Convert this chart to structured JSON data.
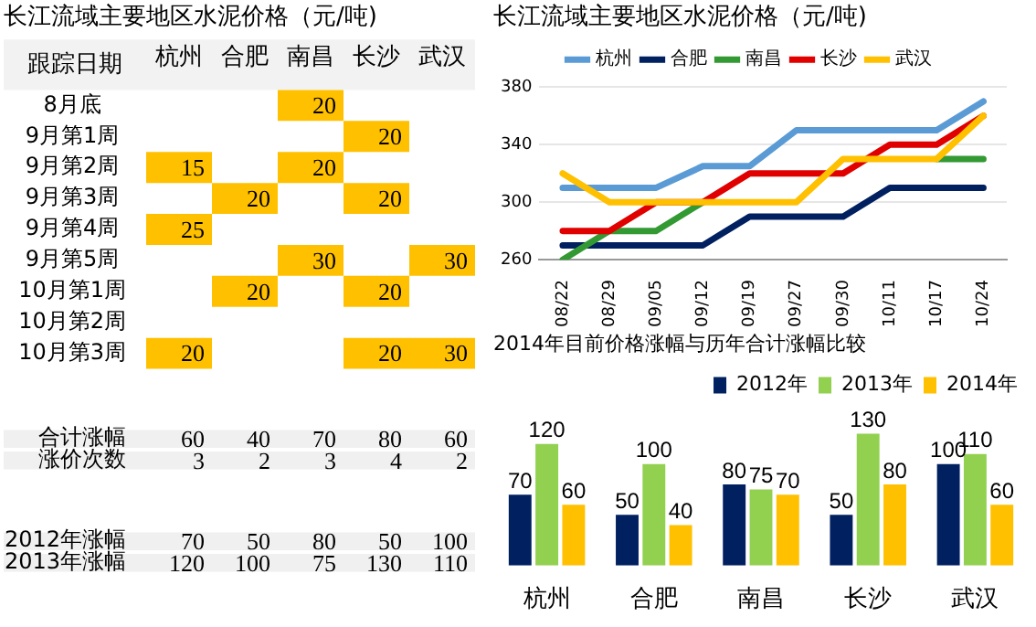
{
  "chart_data": [
    {
      "type": "heatmap",
      "title": "长江流域主要地区水泥价格（元/吨)",
      "ylabel": "跟踪日期",
      "color": "#ffc000",
      "data_labels": true,
      "categories": [
        "杭州",
        "合肥",
        "南昌",
        "长沙",
        "武汉"
      ],
      "y_categories": [
        "8月底",
        "9月第1周",
        "9月第2周",
        "9月第3周",
        "9月第4周",
        "9月第5周",
        "10月第1周",
        "10月第2周",
        "10月第3周"
      ],
      "cells": [
        [
          null,
          null,
          20,
          null,
          null
        ],
        [
          null,
          null,
          null,
          20,
          null
        ],
        [
          15,
          null,
          20,
          null,
          null
        ],
        [
          null,
          20,
          null,
          20,
          null
        ],
        [
          25,
          null,
          null,
          null,
          null
        ],
        [
          null,
          null,
          30,
          null,
          30
        ],
        [
          null,
          20,
          null,
          20,
          null
        ],
        [
          null,
          null,
          null,
          null,
          null
        ],
        [
          20,
          null,
          null,
          20,
          30
        ]
      ]
    },
    {
      "type": "heatmap",
      "tick_labels": "y",
      "data_labels": true,
      "categories": [
        null,
        null,
        null,
        null,
        null
      ],
      "y_categories": [
        "合计涨幅",
        "涨价次数"
      ],
      "cells": [
        [
          60,
          40,
          70,
          80,
          60
        ],
        [
          3,
          2,
          3,
          4,
          2
        ]
      ]
    },
    {
      "type": "heatmap",
      "tick_labels": "y",
      "data_labels": true,
      "categories": [
        null,
        null,
        null,
        null,
        null
      ],
      "y_categories": [
        "2012年涨幅",
        "2013年涨幅"
      ],
      "cells": [
        [
          70,
          50,
          80,
          50,
          100
        ],
        [
          120,
          100,
          75,
          130,
          110
        ]
      ]
    },
    {
      "type": "line",
      "title": "长江流域主要地区水泥价格（元/吨)",
      "categories": [
        "08/22",
        "08/29",
        "09/05",
        "09/12",
        "09/19",
        "09/27",
        "09/30",
        "10/11",
        "10/17",
        "10/24"
      ],
      "ylim": [
        260,
        380
      ],
      "yticks": [
        260,
        300,
        340,
        380
      ],
      "grid": "y",
      "legend": "top",
      "marker": "none",
      "line_style": "solid",
      "series": [
        {
          "name": "杭州",
          "color": "#5b9bd5",
          "values": [
            310,
            310,
            310,
            325,
            325,
            350,
            350,
            350,
            350,
            370
          ]
        },
        {
          "name": "合肥",
          "color": "#002060",
          "values": [
            270,
            270,
            270,
            270,
            290,
            290,
            290,
            310,
            310,
            310
          ]
        },
        {
          "name": "南昌",
          "color": "#339933",
          "values": [
            260,
            280,
            280,
            300,
            null,
            null,
            null,
            null,
            330,
            330
          ]
        },
        {
          "name": "长沙",
          "color": "#e00000",
          "values": [
            280,
            280,
            300,
            300,
            320,
            320,
            320,
            340,
            340,
            360
          ]
        },
        {
          "name": "武汉",
          "color": "#ffc000",
          "values": [
            320,
            300,
            300,
            300,
            300,
            300,
            330,
            330,
            330,
            360
          ]
        }
      ]
    },
    {
      "type": "bar",
      "title": "2014年目前价格涨幅与历年合计涨幅比较",
      "categories": [
        "杭州",
        "合肥",
        "南昌",
        "长沙",
        "武汉"
      ],
      "legend": "top right",
      "data_labels": true,
      "series": [
        {
          "name": "2012年",
          "color": "#002060",
          "values": [
            70,
            50,
            80,
            50,
            100
          ]
        },
        {
          "name": "2013年",
          "color": "#92d050",
          "values": [
            120,
            100,
            75,
            130,
            110
          ]
        },
        {
          "name": "2014年",
          "color": "#ffc000",
          "values": [
            60,
            40,
            70,
            80,
            60
          ]
        }
      ]
    }
  ]
}
